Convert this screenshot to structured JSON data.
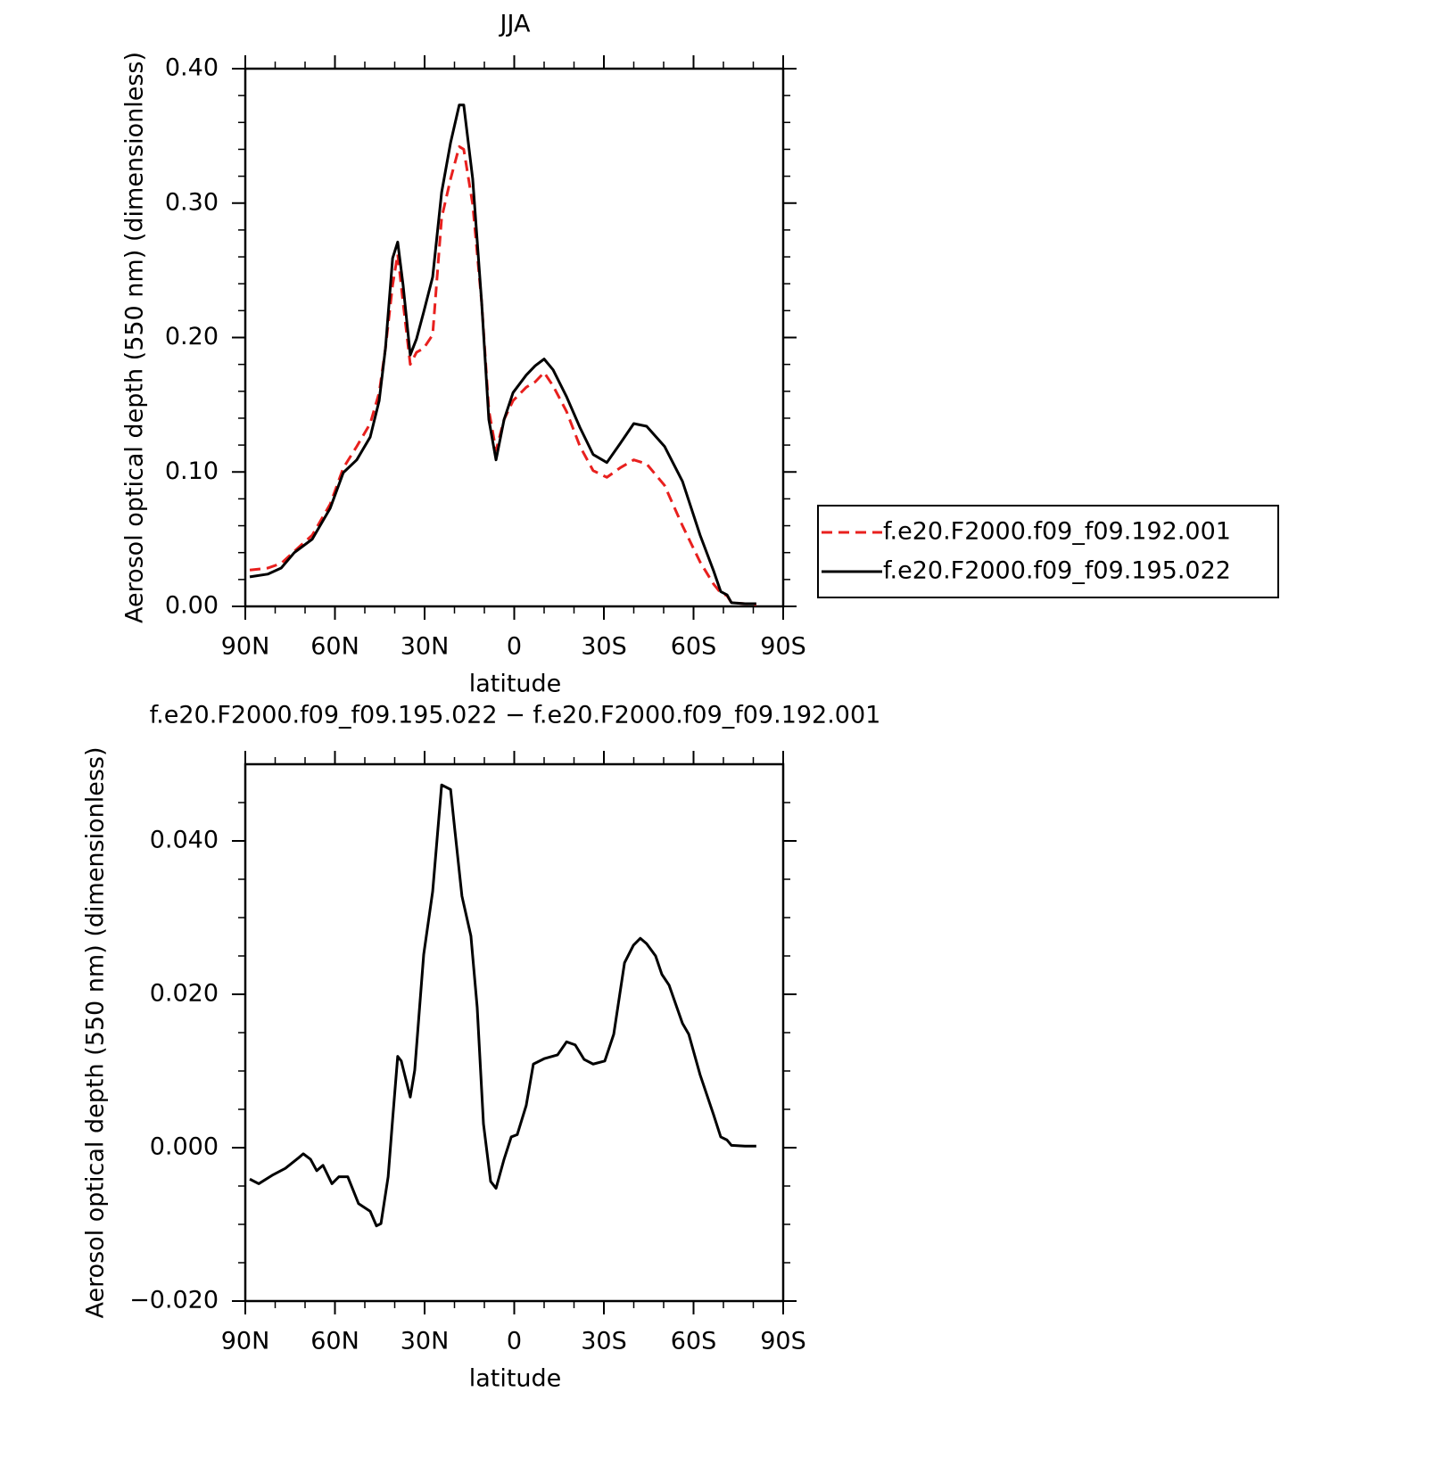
{
  "chart_data": [
    {
      "type": "line",
      "title": "JJA",
      "ylabel": "Aerosol optical depth (550 nm) (dimensionless)",
      "xlabel": "latitude",
      "xlim": [
        90,
        -90
      ],
      "xticks": [
        {
          "value": 90,
          "label": "90N"
        },
        {
          "value": 60,
          "label": "60N"
        },
        {
          "value": 30,
          "label": "30N"
        },
        0,
        {
          "value": -30,
          "label": "30S"
        },
        {
          "value": -60,
          "label": "60S"
        },
        {
          "value": -90,
          "label": "90S"
        }
      ],
      "xminorticks": [
        80,
        70,
        50,
        40,
        20,
        10,
        -10,
        -20,
        -40,
        -50,
        -70,
        -80
      ],
      "ylim": [
        0,
        0.4
      ],
      "yticks": [
        {
          "value": 0,
          "label": "0.00"
        },
        {
          "value": 0.1,
          "label": "0.10"
        },
        {
          "value": 0.2,
          "label": "0.20"
        },
        {
          "value": 0.3,
          "label": "0.30"
        },
        {
          "value": 0.4,
          "label": "0.40"
        }
      ],
      "yminorticks": [
        0.02,
        0.04,
        0.06,
        0.08,
        0.12,
        0.14,
        0.16,
        0.18,
        0.22,
        0.24,
        0.26,
        0.28,
        0.32,
        0.34,
        0.36,
        0.38
      ],
      "legend": "right",
      "x": [
        88.5,
        82.5,
        78,
        73.6,
        67.6,
        61.6,
        57.2,
        52.7,
        48.2,
        45.2,
        43.1,
        40.7,
        39,
        37.2,
        34.8,
        32.7,
        30.3,
        27.3,
        24.3,
        21.3,
        18.4,
        16.9,
        13.9,
        10.9,
        8.5,
        6.1,
        3.4,
        0.4,
        -4,
        -7,
        -10,
        -13,
        -17.5,
        -22,
        -26.4,
        -31,
        -35.4,
        -40,
        -44.3,
        -50.3,
        -56.3,
        -62.2,
        -66.7,
        -69.1,
        -71.2,
        -72.7,
        -77.2,
        -81
      ],
      "series": [
        {
          "name": "f.e20.F2000.f09_f09.192.001",
          "color": "#e8201e",
          "dashed": true,
          "values": [
            0.027,
            0.0285,
            0.032,
            0.041,
            0.053,
            0.076,
            0.103,
            0.119,
            0.136,
            0.159,
            0.192,
            0.239,
            0.262,
            0.226,
            0.18,
            0.189,
            0.192,
            0.202,
            0.289,
            0.318,
            0.342,
            0.34,
            0.299,
            0.226,
            0.146,
            0.116,
            0.139,
            0.153,
            0.163,
            0.167,
            0.174,
            0.164,
            0.145,
            0.119,
            0.101,
            0.096,
            0.103,
            0.109,
            0.106,
            0.09,
            0.06,
            0.033,
            0.0166,
            0.01,
            0.008,
            0.0027,
            0.002,
            0.0013
          ]
        },
        {
          "name": "f.e20.F2000.f09_f09.195.022",
          "color": "#000000",
          "dashed": false,
          "values": [
            0.022,
            0.024,
            0.0285,
            0.04,
            0.05,
            0.073,
            0.0995,
            0.109,
            0.126,
            0.153,
            0.192,
            0.259,
            0.271,
            0.239,
            0.187,
            0.199,
            0.219,
            0.245,
            0.308,
            0.345,
            0.373,
            0.373,
            0.318,
            0.226,
            0.139,
            0.109,
            0.139,
            0.159,
            0.172,
            0.179,
            0.184,
            0.176,
            0.156,
            0.133,
            0.113,
            0.107,
            0.121,
            0.136,
            0.134,
            0.119,
            0.093,
            0.053,
            0.0265,
            0.011,
            0.0086,
            0.0027,
            0.002,
            0.002
          ]
        }
      ]
    },
    {
      "type": "line",
      "title": "f.e20.F2000.f09_f09.195.022 − f.e20.F2000.f09_f09.192.001",
      "ylabel": "Aerosol optical depth (550 nm) (dimensionless)",
      "xlabel": "latitude",
      "xlim": [
        90,
        -90
      ],
      "xticks": [
        {
          "value": 90,
          "label": "90N"
        },
        {
          "value": 60,
          "label": "60N"
        },
        {
          "value": 30,
          "label": "30N"
        },
        0,
        {
          "value": -30,
          "label": "30S"
        },
        {
          "value": -60,
          "label": "60S"
        },
        {
          "value": -90,
          "label": "90S"
        }
      ],
      "xminorticks": [
        80,
        70,
        50,
        40,
        20,
        10,
        -10,
        -20,
        -40,
        -50,
        -70,
        -80
      ],
      "ylim": [
        -0.02,
        0.05
      ],
      "yticks": [
        {
          "value": -0.02,
          "label": "−0.020"
        },
        {
          "value": 0,
          "label": "0.000"
        },
        {
          "value": 0.02,
          "label": "0.020"
        },
        {
          "value": 0.04,
          "label": "0.040"
        }
      ],
      "yminorticks": [
        -0.015,
        -0.01,
        -0.005,
        0.005,
        0.01,
        0.015,
        0.025,
        0.03,
        0.035,
        0.045
      ],
      "x": [
        88.5,
        85.5,
        81,
        76.6,
        72.1,
        70.6,
        68.2,
        66.1,
        64,
        61,
        58.7,
        55.7,
        52.1,
        48.2,
        46.1,
        44.6,
        42.2,
        40.7,
        39,
        37.8,
        34.8,
        33.3,
        30.3,
        27.3,
        24.3,
        21.3,
        19.9,
        17.5,
        14.5,
        12.4,
        10.3,
        7.9,
        6.1,
        3.4,
        1,
        -1,
        -4,
        -6.4,
        -10,
        -14.5,
        -17.5,
        -20.4,
        -23.4,
        -26.4,
        -30.3,
        -33.3,
        -36.9,
        -39.9,
        -42.2,
        -44.3,
        -47.3,
        -49.4,
        -51.8,
        -56.3,
        -58.4,
        -62.2,
        -66.7,
        -69.1,
        -71.2,
        -72.7,
        -77.2,
        -81
      ],
      "series": [
        {
          "color": "#000000",
          "dashed": false,
          "values": [
            -0.0041,
            -0.0047,
            -0.0036,
            -0.0027,
            -0.0013,
            -0.0008,
            -0.0015,
            -0.003,
            -0.0023,
            -0.0047,
            -0.0038,
            -0.0038,
            -0.0073,
            -0.0083,
            -0.0102,
            -0.0099,
            -0.0038,
            0.0037,
            0.0119,
            0.0113,
            0.0066,
            0.0101,
            0.0252,
            0.0334,
            0.0473,
            0.0467,
            0.0415,
            0.0328,
            0.0276,
            0.0183,
            0.0031,
            -0.0044,
            -0.0053,
            -0.0015,
            0.0014,
            0.0017,
            0.0055,
            0.0109,
            0.0116,
            0.0121,
            0.0138,
            0.0134,
            0.0115,
            0.0109,
            0.0113,
            0.0148,
            0.0241,
            0.0264,
            0.0273,
            0.0266,
            0.025,
            0.0226,
            0.0212,
            0.0162,
            0.0148,
            0.0095,
            0.0043,
            0.0014,
            0.001,
            0.0003,
            0.0002,
            0.0002
          ]
        }
      ]
    }
  ]
}
